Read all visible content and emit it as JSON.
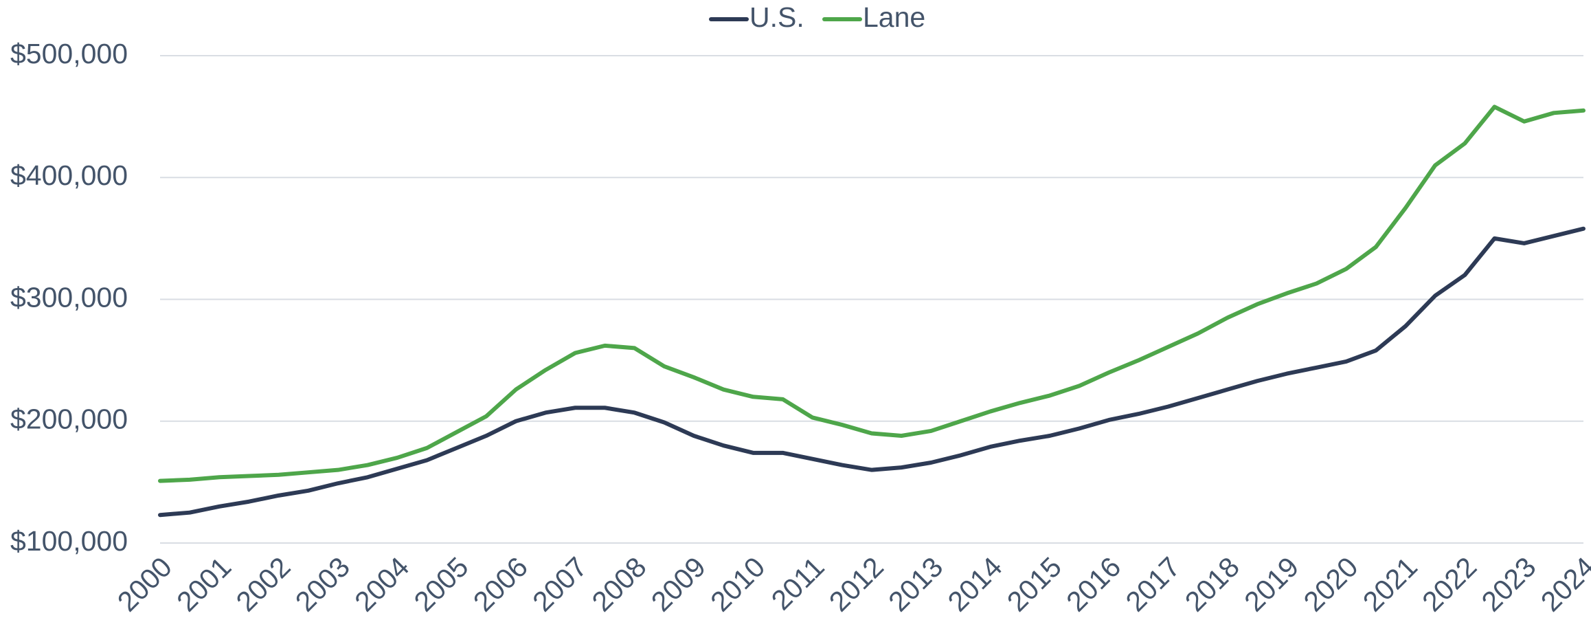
{
  "chart_data": {
    "type": "line",
    "x": [
      2000,
      2000.5,
      2001,
      2001.5,
      2002,
      2002.5,
      2003,
      2003.5,
      2004,
      2004.5,
      2005,
      2005.5,
      2006,
      2006.5,
      2007,
      2007.5,
      2008,
      2008.5,
      2009,
      2009.5,
      2010,
      2010.5,
      2011,
      2011.5,
      2012,
      2012.5,
      2013,
      2013.5,
      2014,
      2014.5,
      2015,
      2015.5,
      2016,
      2016.5,
      2017,
      2017.5,
      2018,
      2018.5,
      2019,
      2019.5,
      2020,
      2020.5,
      2021,
      2021.5,
      2022,
      2022.5,
      2023,
      2023.5,
      2024
    ],
    "series": [
      {
        "name": "U.S.",
        "color": "#2d3a55",
        "values": [
          123000,
          125000,
          130000,
          134000,
          139000,
          143000,
          149000,
          154000,
          161000,
          168000,
          178000,
          188000,
          200000,
          207000,
          211000,
          211000,
          207000,
          199000,
          188000,
          180000,
          174000,
          174000,
          169000,
          164000,
          160000,
          162000,
          166000,
          172000,
          179000,
          184000,
          188000,
          194000,
          201000,
          206000,
          212000,
          219000,
          226000,
          233000,
          239000,
          244000,
          249000,
          258000,
          278000,
          303000,
          320000,
          350000,
          346000,
          352000,
          358000
        ]
      },
      {
        "name": "Lane",
        "color": "#4ea64a",
        "values": [
          151000,
          152000,
          154000,
          155000,
          156000,
          158000,
          160000,
          164000,
          170000,
          178000,
          191000,
          204000,
          226000,
          242000,
          256000,
          262000,
          260000,
          245000,
          236000,
          226000,
          220000,
          218000,
          203000,
          197000,
          190000,
          188000,
          192000,
          200000,
          208000,
          215000,
          221000,
          229000,
          240000,
          250000,
          261000,
          272000,
          285000,
          296000,
          305000,
          313000,
          325000,
          343000,
          375000,
          410000,
          428000,
          458000,
          446000,
          453000,
          455000
        ]
      }
    ],
    "xlim": [
      2000,
      2024
    ],
    "xticks": [
      2000,
      2001,
      2002,
      2003,
      2004,
      2005,
      2006,
      2007,
      2008,
      2009,
      2010,
      2011,
      2012,
      2013,
      2014,
      2015,
      2016,
      2017,
      2018,
      2019,
      2020,
      2021,
      2022,
      2023,
      2024
    ],
    "ylim": [
      100000,
      500000
    ],
    "yticks": [
      {
        "value": 100000,
        "label": "$100,000"
      },
      {
        "value": 200000,
        "label": "$200,000"
      },
      {
        "value": 300000,
        "label": "$300,000"
      },
      {
        "value": 400000,
        "label": "$400,000"
      },
      {
        "value": 500000,
        "label": "$500,000"
      }
    ],
    "grid": true,
    "legend": "top"
  }
}
